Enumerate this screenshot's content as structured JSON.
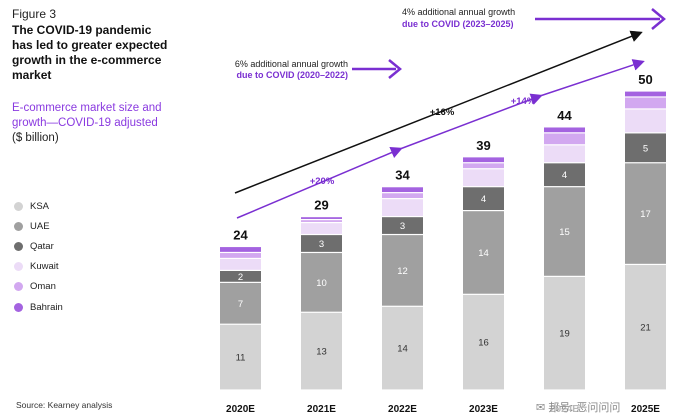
{
  "figure_label": "Figure 3",
  "headline": "The COVID-19 pandemic has led to greater expected growth in the e-commerce market",
  "subheading": "E-commerce market size and growth—COVID-19 adjusted",
  "unit_label": "($ billion)",
  "source": "Source: Kearney analysis",
  "watermark": "✉ 邦号: 恶问问问",
  "annotations": {
    "arrow1": {
      "line1": "6% additional annual growth",
      "line2": "due to COVID (2020–2022)"
    },
    "arrow2": {
      "line1": "4% additional annual growth",
      "line2": "due to COVID (2023–2025)"
    },
    "trend_black": "+16%",
    "trend_purple_early": "+20%",
    "trend_purple_late": "+14%"
  },
  "colors": {
    "KSA": "#d3d3d3",
    "UAE": "#a0a0a0",
    "Qatar": "#6e6e6e",
    "Kuwait": "#ecdcf7",
    "Oman": "#d2a8f0",
    "Bahrain": "#a463e0",
    "accent": "#7a2fd1",
    "trend_black": "#111111"
  },
  "chart_data": {
    "type": "bar",
    "stacked": true,
    "title": "",
    "xlabel": "",
    "ylabel": "",
    "categories": [
      "2020E",
      "2021E",
      "2022E",
      "2023E",
      "2024E",
      "2025E"
    ],
    "totals": [
      24,
      29,
      34,
      39,
      44,
      50
    ],
    "series": [
      {
        "name": "KSA",
        "values": [
          11,
          13,
          14,
          16,
          19,
          21
        ]
      },
      {
        "name": "UAE",
        "values": [
          7,
          10,
          12,
          14,
          15,
          17
        ]
      },
      {
        "name": "Qatar",
        "values": [
          2,
          3,
          3,
          4,
          4,
          5
        ]
      },
      {
        "name": "Kuwait",
        "values": [
          2,
          2,
          3,
          3,
          3,
          4
        ]
      },
      {
        "name": "Oman",
        "values": [
          1,
          0.5,
          1,
          1,
          2,
          2
        ]
      },
      {
        "name": "Bahrain",
        "values": [
          1,
          0.5,
          1,
          1,
          1,
          1
        ]
      }
    ],
    "value_labels_shown_for": [
      "KSA",
      "UAE",
      "Qatar"
    ],
    "legend_position": "left",
    "grid": false
  }
}
